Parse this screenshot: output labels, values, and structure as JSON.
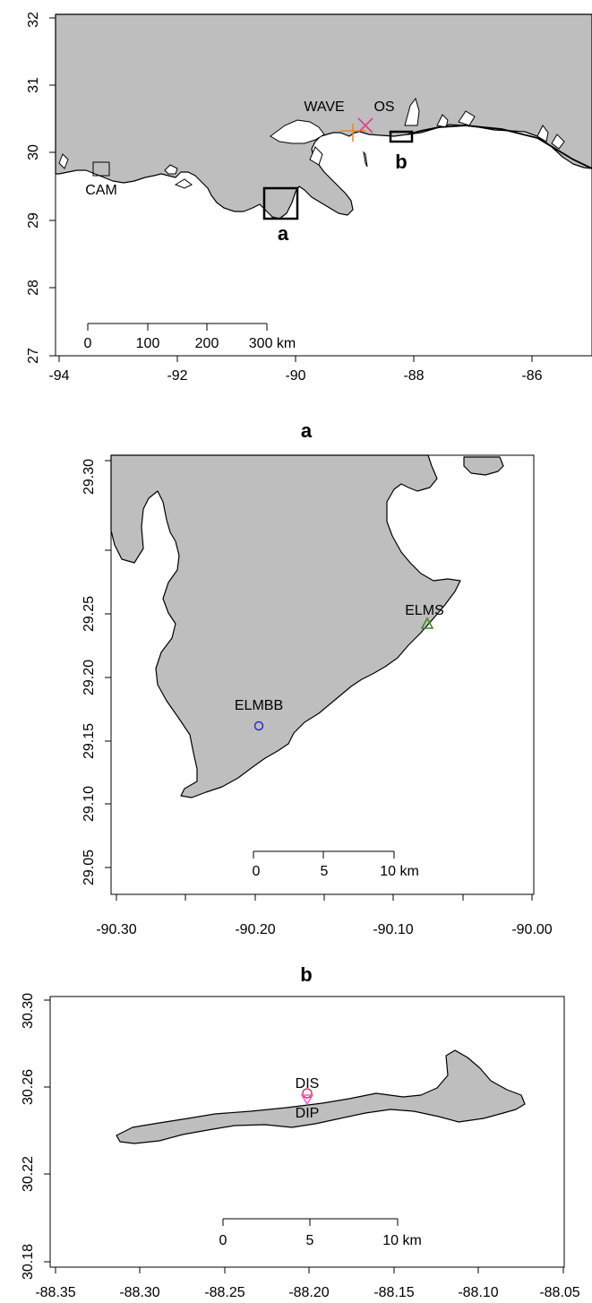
{
  "panel_overview": {
    "x_ticks": [
      "-94",
      "-92",
      "-90",
      "-88",
      "-86"
    ],
    "y_ticks": [
      "27",
      "28",
      "29",
      "30",
      "31",
      "32"
    ],
    "sites": {
      "wave": "WAVE",
      "os": "OS",
      "cam": "CAM"
    },
    "inset_labels": {
      "a": "a",
      "b": "b"
    },
    "scale_bar": [
      "0",
      "100",
      "200",
      "300 km"
    ]
  },
  "panel_a": {
    "title": "a",
    "x_ticks": [
      "-90.30",
      "-90.20",
      "-90.10",
      "-90.00"
    ],
    "y_ticks": [
      "29.05",
      "29.10",
      "29.15",
      "29.20",
      "29.25",
      "29.30"
    ],
    "sites": {
      "elms": "ELMS",
      "elmbb": "ELMBB"
    },
    "scale_bar": [
      "0",
      "5",
      "10 km"
    ]
  },
  "panel_b": {
    "title": "b",
    "x_ticks": [
      "-88.35",
      "-88.30",
      "-88.25",
      "-88.20",
      "-88.15",
      "-88.10",
      "-88.05"
    ],
    "y_ticks": [
      "30.18",
      "30.22",
      "30.26",
      "30.30"
    ],
    "sites": {
      "dis": "DIS",
      "dip": "DIP"
    },
    "scale_bar": [
      "0",
      "5",
      "10 km"
    ]
  },
  "colors": {
    "land": "#bebebe",
    "wave_marker": "#e08a2a",
    "os_marker": "#e0408a",
    "elms_marker": "#3a8a1a",
    "elmbb_marker": "#2a2ad0",
    "dis_marker": "#e03a5a",
    "dip_marker": "#e060e0"
  }
}
